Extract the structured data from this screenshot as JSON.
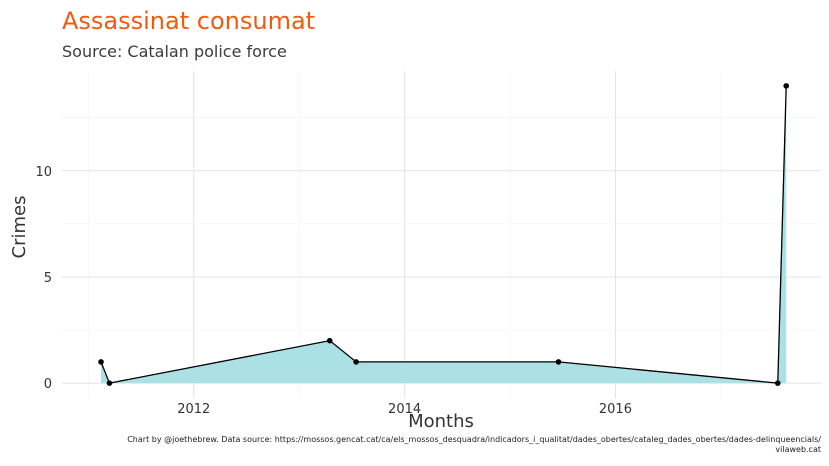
{
  "chart_data": {
    "type": "area",
    "title": "Assassinat consumat",
    "subtitle": "Source: Catalan police force",
    "xlabel": "Months",
    "ylabel": "Crimes",
    "caption_line1": "Chart by @joethebrew. Data source: https://mossos.gencat.cat/ca/els_mossos_desquadra/indicadors_i_qualitat/dades_obertes/cataleg_dades_obertes/dades-delinqueencials/",
    "caption_line2": "vilaweb.cat",
    "x_ticks": [
      {
        "value": 2012,
        "label": "2012"
      },
      {
        "value": 2014,
        "label": "2014"
      },
      {
        "value": 2016,
        "label": "2016"
      }
    ],
    "y_ticks": [
      {
        "value": 0,
        "label": "0"
      },
      {
        "value": 5,
        "label": "5"
      },
      {
        "value": 10,
        "label": "10"
      }
    ],
    "xlim": [
      2010.75,
      2017.95
    ],
    "ylim": [
      -0.7,
      14.7
    ],
    "grid": true,
    "colors": {
      "fill": "#abe0e4",
      "line": "#000000",
      "title": "#f25a0f"
    },
    "points": [
      {
        "x": 2011.12,
        "y": 1
      },
      {
        "x": 2011.2,
        "y": 0
      },
      {
        "x": 2013.29,
        "y": 2
      },
      {
        "x": 2013.54,
        "y": 1
      },
      {
        "x": 2015.46,
        "y": 1
      },
      {
        "x": 2017.54,
        "y": 0
      },
      {
        "x": 2017.62,
        "y": 14
      }
    ]
  }
}
